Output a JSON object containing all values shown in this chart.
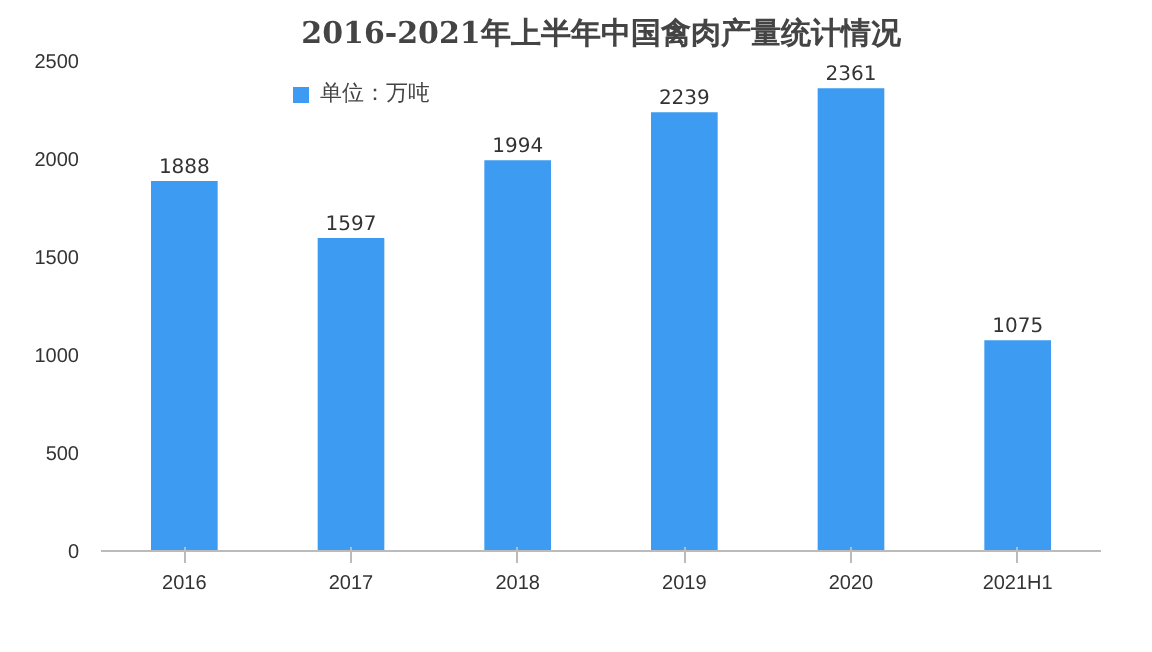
{
  "chart_data": {
    "type": "bar",
    "title": "2016-2021年上半年中国禽肉产量统计情况",
    "categories": [
      "2016",
      "2017",
      "2018",
      "2019",
      "2020",
      "2021H1"
    ],
    "series": [
      {
        "name": "单位：万吨",
        "color": "#3d9bf2",
        "values": [
          1888,
          1597,
          1994,
          2239,
          2361,
          1075
        ]
      }
    ],
    "ylim": [
      0,
      2500
    ],
    "yticks": [
      0,
      500,
      1000,
      1500,
      2000,
      2500
    ],
    "data_labels": true,
    "legend": "top",
    "grid": false
  }
}
